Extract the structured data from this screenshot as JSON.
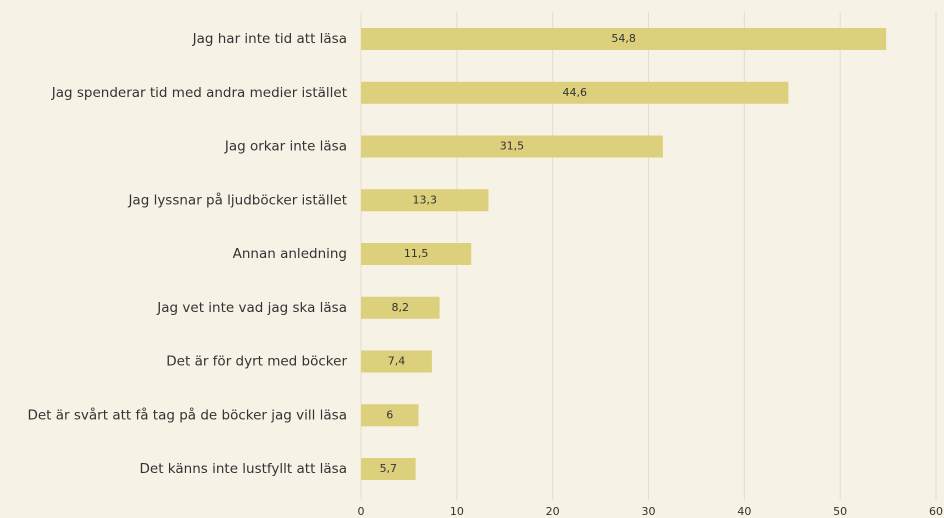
{
  "chart_data": {
    "type": "barh",
    "categories": [
      "Jag har inte tid att läsa",
      "Jag spenderar tid med andra medier istället",
      "Jag orkar inte läsa",
      "Jag lyssnar på ljudböcker istället",
      "Annan anledning",
      "Jag vet inte vad jag ska läsa",
      "Det är för dyrt med böcker",
      "Det är svårt att få tag på de böcker jag vill läsa",
      "Det känns inte lustfyllt att läsa"
    ],
    "values": [
      54.8,
      44.6,
      31.5,
      13.3,
      11.5,
      8.2,
      7.4,
      6,
      5.7
    ],
    "value_labels": [
      "54,8",
      "44,6",
      "31,5",
      "13,3",
      "11,5",
      "8,2",
      "7,4",
      "6",
      "5,7"
    ],
    "color": "#ddd07c",
    "xlim": [
      0,
      60
    ],
    "xticks": [
      0,
      10,
      20,
      30,
      40,
      50,
      60
    ],
    "grid": true
  }
}
